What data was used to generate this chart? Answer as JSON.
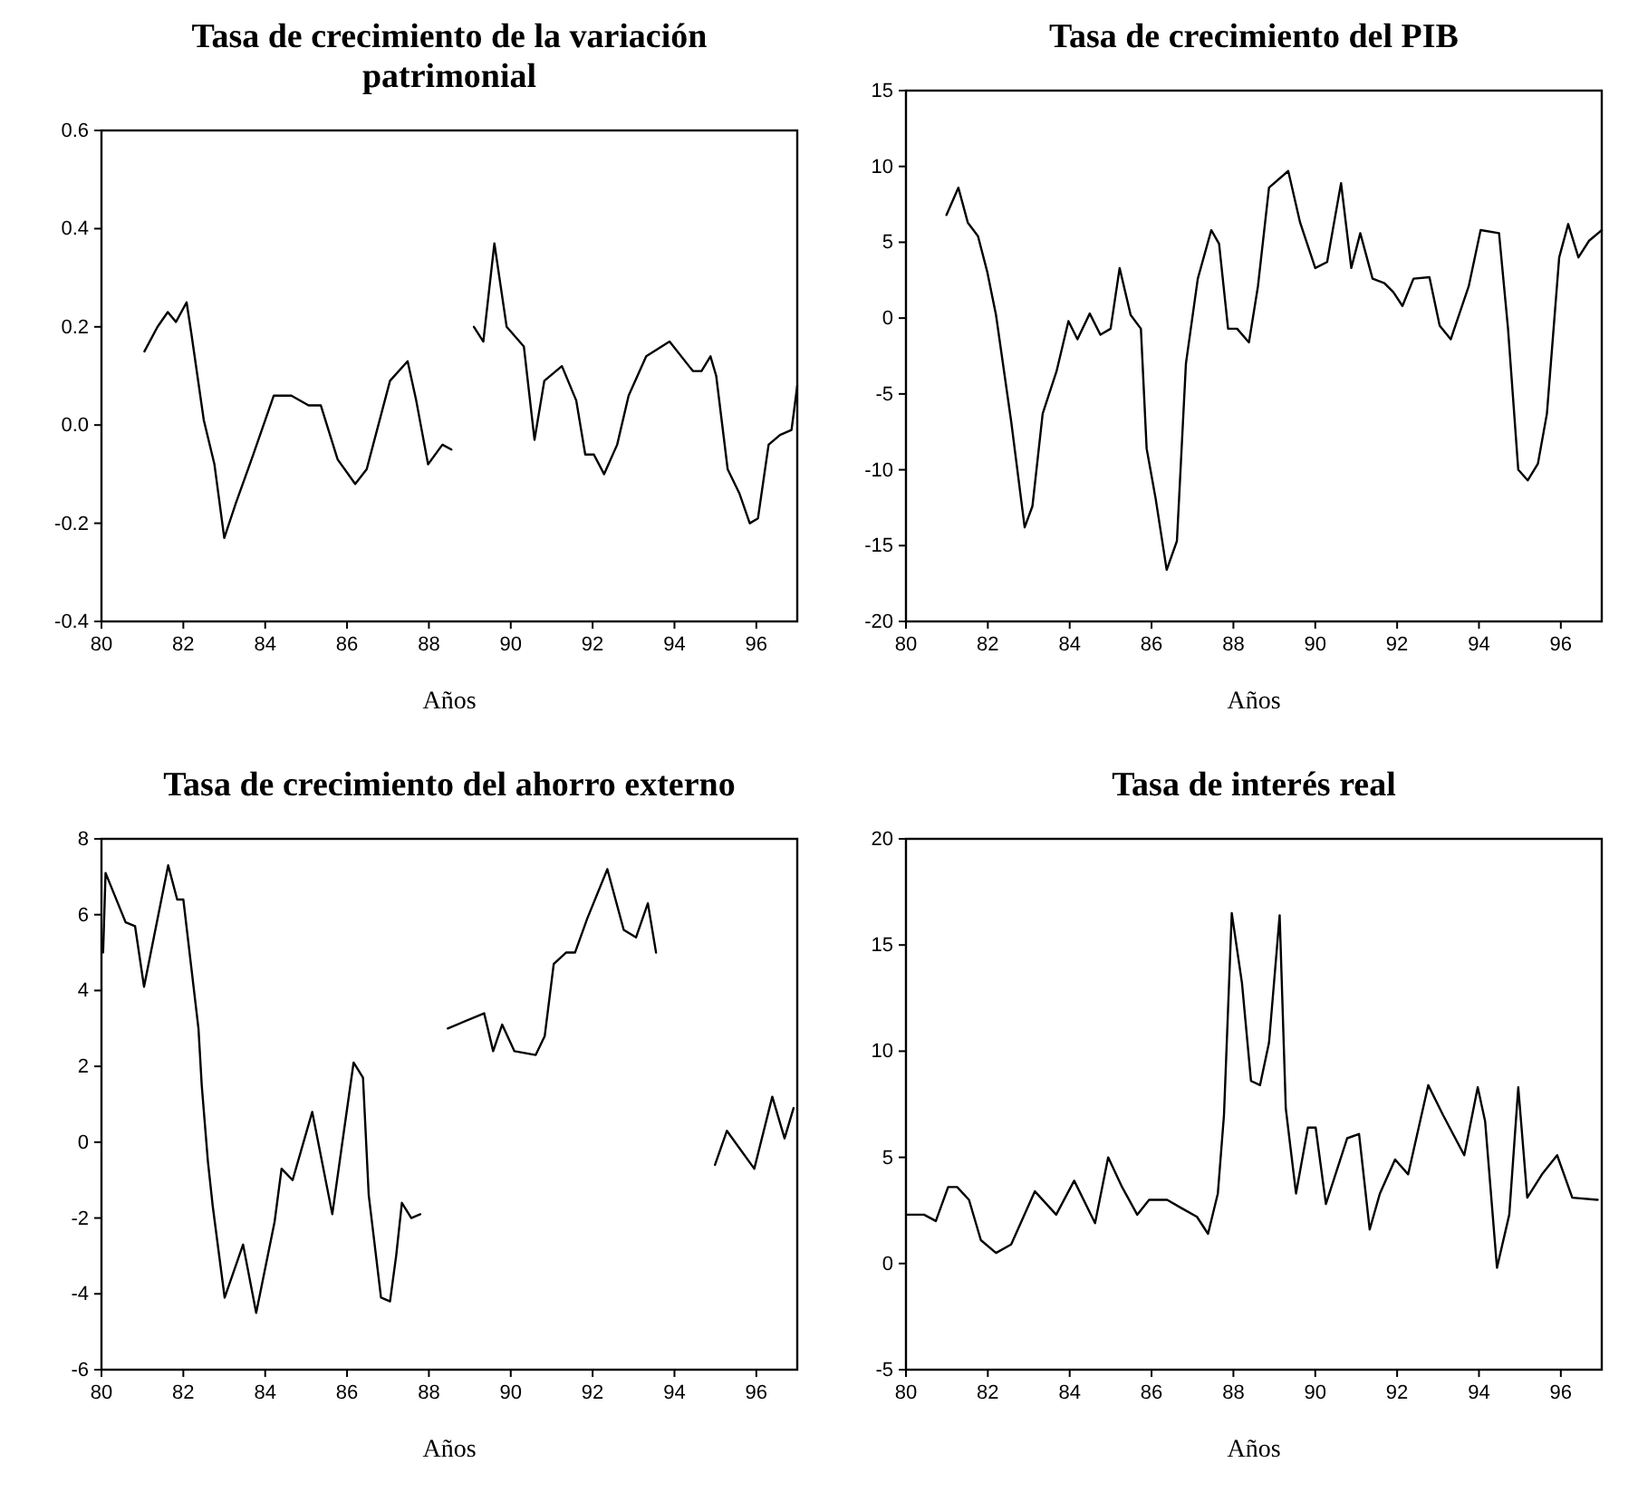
{
  "chart_data": [
    {
      "type": "line",
      "title": "Tasa de crecimiento de la variación patrimonial",
      "xlabel": "Años",
      "xlim": [
        80,
        97
      ],
      "xticks": [
        80,
        82,
        84,
        86,
        88,
        90,
        92,
        94,
        96
      ],
      "ylim": [
        -0.4,
        0.6
      ],
      "yticks": [
        -0.4,
        -0.2,
        {
          "value": 0,
          "label": "0.0"
        },
        0.2,
        0.4,
        0.6
      ],
      "grid": false,
      "marker": "none",
      "line_style": "solid",
      "series": [
        {
          "color": "#000000",
          "x": [
            81.05,
            81.37,
            81.62,
            81.82,
            82.08,
            82.19,
            82.5,
            82.76,
            83.0,
            83.28,
            83.71,
            84.21,
            84.64,
            85.06,
            85.36,
            85.77,
            86.2,
            86.48,
            87.05,
            87.48,
            87.69,
            87.98,
            88.33,
            88.55,
            88.8,
            89.1,
            89.33,
            89.6,
            89.9,
            90.32,
            90.58,
            90.82,
            91.25,
            91.6,
            91.82,
            92.03,
            92.28,
            92.6,
            92.88,
            93.31,
            93.88,
            94.45,
            94.66,
            94.88,
            95.02,
            95.3,
            95.59,
            95.84,
            96.04,
            96.3,
            96.58,
            96.86,
            97.0
          ],
          "values": [
            0.15,
            0.2,
            0.23,
            0.21,
            0.25,
            0.19,
            0.01,
            -0.08,
            -0.23,
            -0.16,
            -0.06,
            0.06,
            0.06,
            0.04,
            0.04,
            -0.07,
            -0.12,
            -0.09,
            0.09,
            0.13,
            0.05,
            -0.08,
            -0.04,
            -0.05,
            null,
            0.2,
            0.17,
            0.37,
            0.2,
            0.16,
            -0.03,
            0.09,
            0.12,
            0.05,
            -0.06,
            -0.06,
            -0.1,
            -0.04,
            0.06,
            0.14,
            0.17,
            0.11,
            0.11,
            0.14,
            0.1,
            -0.09,
            -0.14,
            -0.2,
            -0.19,
            -0.04,
            -0.02,
            -0.01,
            0.08
          ]
        }
      ]
    },
    {
      "type": "line",
      "title": "Tasa de crecimiento del PIB",
      "xlabel": "Años",
      "xlim": [
        80,
        97
      ],
      "xticks": [
        80,
        82,
        84,
        86,
        88,
        90,
        92,
        94,
        96
      ],
      "ylim": [
        -20,
        15
      ],
      "yticks": [
        -20,
        -15,
        -10,
        -5,
        0,
        5,
        10,
        15
      ],
      "grid": false,
      "marker": "none",
      "line_style": "solid",
      "series": [
        {
          "color": "#000000",
          "x": [
            80.99,
            81.28,
            81.51,
            81.76,
            81.99,
            82.2,
            82.57,
            82.9,
            83.09,
            83.34,
            83.68,
            83.97,
            84.19,
            84.49,
            84.75,
            85.0,
            85.22,
            85.49,
            85.74,
            85.88,
            86.1,
            86.37,
            86.62,
            86.84,
            87.13,
            87.46,
            87.65,
            87.87,
            88.09,
            88.38,
            88.6,
            88.87,
            89.34,
            89.63,
            90.0,
            90.29,
            90.63,
            90.88,
            91.1,
            91.4,
            91.69,
            91.91,
            92.13,
            92.4,
            92.79,
            93.04,
            93.31,
            93.75,
            94.04,
            94.49,
            94.71,
            94.96,
            95.19,
            95.44,
            95.66,
            95.96,
            96.18,
            96.43,
            96.69,
            97.0
          ],
          "values": [
            6.8,
            8.6,
            6.3,
            5.4,
            3.0,
            0.2,
            -6.8,
            -13.8,
            -12.4,
            -6.3,
            -3.5,
            -0.2,
            -1.4,
            0.3,
            -1.1,
            -0.7,
            3.3,
            0.2,
            -0.7,
            -8.6,
            -11.9,
            -16.6,
            -14.7,
            -3.0,
            2.6,
            5.8,
            4.9,
            -0.7,
            -0.7,
            -1.6,
            2.1,
            8.6,
            9.7,
            6.3,
            3.3,
            3.7,
            8.9,
            3.3,
            5.6,
            2.6,
            2.3,
            1.7,
            0.8,
            2.6,
            2.7,
            -0.5,
            -1.4,
            2.1,
            5.8,
            5.6,
            -0.7,
            -10.0,
            -10.7,
            -9.6,
            -6.3,
            4.0,
            6.2,
            4.0,
            5.1,
            5.8
          ]
        }
      ]
    },
    {
      "type": "line",
      "title": "Tasa de crecimiento del ahorro externo",
      "xlabel": "Años",
      "xlim": [
        80,
        97
      ],
      "xticks": [
        80,
        82,
        84,
        86,
        88,
        90,
        92,
        94,
        96
      ],
      "ylim": [
        -6,
        8
      ],
      "yticks": [
        -6,
        -4,
        -2,
        0,
        2,
        4,
        6,
        8
      ],
      "grid": false,
      "marker": "none",
      "line_style": "solid",
      "series": [
        {
          "color": "#000000",
          "x": [
            80.04,
            80.1,
            80.59,
            80.82,
            81.04,
            81.63,
            81.85,
            82.0,
            82.37,
            82.45,
            82.6,
            82.72,
            83.01,
            83.46,
            83.78,
            84.23,
            84.4,
            84.67,
            85.15,
            85.64,
            85.86,
            86.16,
            86.39,
            86.53,
            86.83,
            87.05,
            87.2,
            87.34,
            87.57,
            87.79,
            88.1,
            88.46,
            89.35,
            89.57,
            89.79,
            90.09,
            90.61,
            90.83,
            91.05,
            91.35,
            91.57,
            91.87,
            92.36,
            92.76,
            93.06,
            93.35,
            93.55,
            94.3,
            94.99,
            95.28,
            95.95,
            96.39,
            96.69,
            96.91
          ],
          "values": [
            5.0,
            7.1,
            5.8,
            5.7,
            4.1,
            7.3,
            6.4,
            6.4,
            3.0,
            1.5,
            -0.5,
            -1.7,
            -4.1,
            -2.7,
            -4.5,
            -2.1,
            -0.7,
            -1.0,
            0.8,
            -1.9,
            -0.2,
            2.1,
            1.7,
            -1.4,
            -4.1,
            -4.2,
            -3.0,
            -1.6,
            -2.0,
            -1.9,
            null,
            3.0,
            3.4,
            2.4,
            3.1,
            2.4,
            2.3,
            2.8,
            4.7,
            5.0,
            5.0,
            5.9,
            7.2,
            5.6,
            5.4,
            6.3,
            5.0,
            null,
            -0.6,
            0.3,
            -0.7,
            1.2,
            0.1,
            0.9
          ]
        }
      ]
    },
    {
      "type": "line",
      "title": "Tasa de interés real",
      "xlabel": "Años",
      "xlim": [
        80,
        97
      ],
      "xticks": [
        80,
        82,
        84,
        86,
        88,
        90,
        92,
        94,
        96
      ],
      "ylim": [
        -5,
        20
      ],
      "yticks": [
        -5,
        0,
        5,
        10,
        15,
        20
      ],
      "grid": false,
      "marker": "none",
      "line_style": "solid",
      "series": [
        {
          "color": "#000000",
          "x": [
            80.04,
            80.44,
            80.73,
            81.03,
            81.25,
            81.54,
            81.83,
            82.2,
            82.57,
            83.15,
            83.67,
            84.11,
            84.62,
            84.94,
            85.28,
            85.65,
            85.94,
            86.38,
            86.74,
            87.11,
            87.38,
            87.62,
            87.77,
            87.96,
            88.21,
            88.43,
            88.65,
            88.87,
            89.13,
            89.28,
            89.53,
            89.82,
            90.01,
            90.26,
            90.78,
            91.07,
            91.33,
            91.58,
            91.95,
            92.27,
            92.76,
            93.12,
            93.64,
            93.97,
            94.15,
            94.44,
            94.74,
            94.96,
            95.18,
            95.54,
            95.91,
            96.28,
            96.9
          ],
          "values": [
            2.3,
            2.3,
            2.0,
            3.6,
            3.6,
            3.0,
            1.1,
            0.5,
            0.9,
            3.4,
            2.3,
            3.9,
            1.9,
            5.0,
            3.6,
            2.3,
            3.0,
            3.0,
            2.6,
            2.2,
            1.4,
            3.3,
            7.0,
            16.5,
            13.2,
            8.6,
            8.4,
            10.4,
            16.4,
            7.3,
            3.3,
            6.4,
            6.4,
            2.8,
            5.9,
            6.1,
            1.6,
            3.3,
            4.9,
            4.2,
            8.4,
            7.0,
            5.1,
            8.3,
            6.7,
            -0.2,
            2.3,
            8.3,
            3.1,
            4.2,
            5.1,
            3.1,
            3.0
          ]
        }
      ]
    }
  ]
}
